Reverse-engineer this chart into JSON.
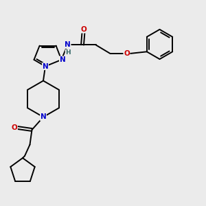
{
  "background_color": "#ebebeb",
  "atom_colors": {
    "N": "#0000cc",
    "O": "#cc0000",
    "C": "#000000",
    "H": "#336666"
  },
  "bond_color": "#000000",
  "figsize": [
    3.0,
    3.0
  ],
  "dpi": 100
}
